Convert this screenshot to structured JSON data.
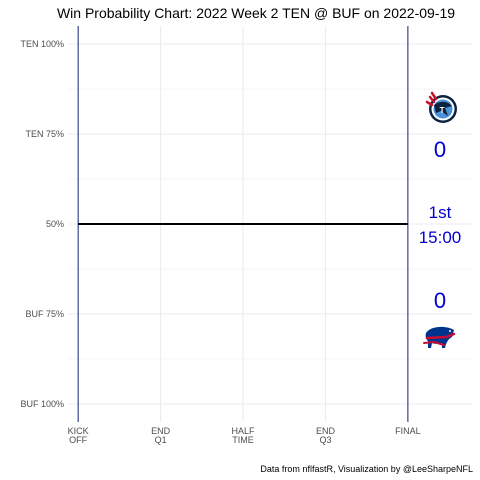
{
  "chart_data": {
    "type": "line",
    "title": "Win Probability Chart: 2022 Week 2 TEN @ BUF on 2022-09-19",
    "caption": "Data from nflfastR, Visualization by @LeeSharpeNFL",
    "y_ticks": [
      {
        "value": 100,
        "label": "TEN 100%"
      },
      {
        "value": 75,
        "label": "TEN 75%"
      },
      {
        "value": 50,
        "label": "50%"
      },
      {
        "value": 25,
        "label": "BUF 75%"
      },
      {
        "value": 0,
        "label": "BUF 100%"
      }
    ],
    "x_ticks": [
      {
        "value": 0,
        "lines": [
          "KICK",
          "OFF"
        ]
      },
      {
        "value": 900,
        "lines": [
          "END",
          "Q1"
        ]
      },
      {
        "value": 1800,
        "lines": [
          "HALF",
          "TIME"
        ]
      },
      {
        "value": 2700,
        "lines": [
          "END",
          "Q3"
        ]
      },
      {
        "value": 3600,
        "lines": [
          "FINAL"
        ]
      }
    ],
    "xlim": [
      -100,
      4300
    ],
    "ylim": [
      -5,
      105
    ],
    "grid": true,
    "reference_lines_x": [
      0,
      3600
    ],
    "series": [
      {
        "x": [
          0,
          3600
        ],
        "y": [
          50,
          50
        ],
        "color": "#000000"
      }
    ],
    "annotations": {
      "away_team": {
        "team": "TEN",
        "score": "0",
        "logo": "titans-logo"
      },
      "home_team": {
        "team": "BUF",
        "score": "0",
        "logo": "bills-logo"
      },
      "quarter": "1st",
      "clock": "15:00"
    },
    "colors": {
      "line": "#000000",
      "reference": "#1a237e",
      "grid": "#ebebeb",
      "text_accent": "#0000cd"
    }
  }
}
